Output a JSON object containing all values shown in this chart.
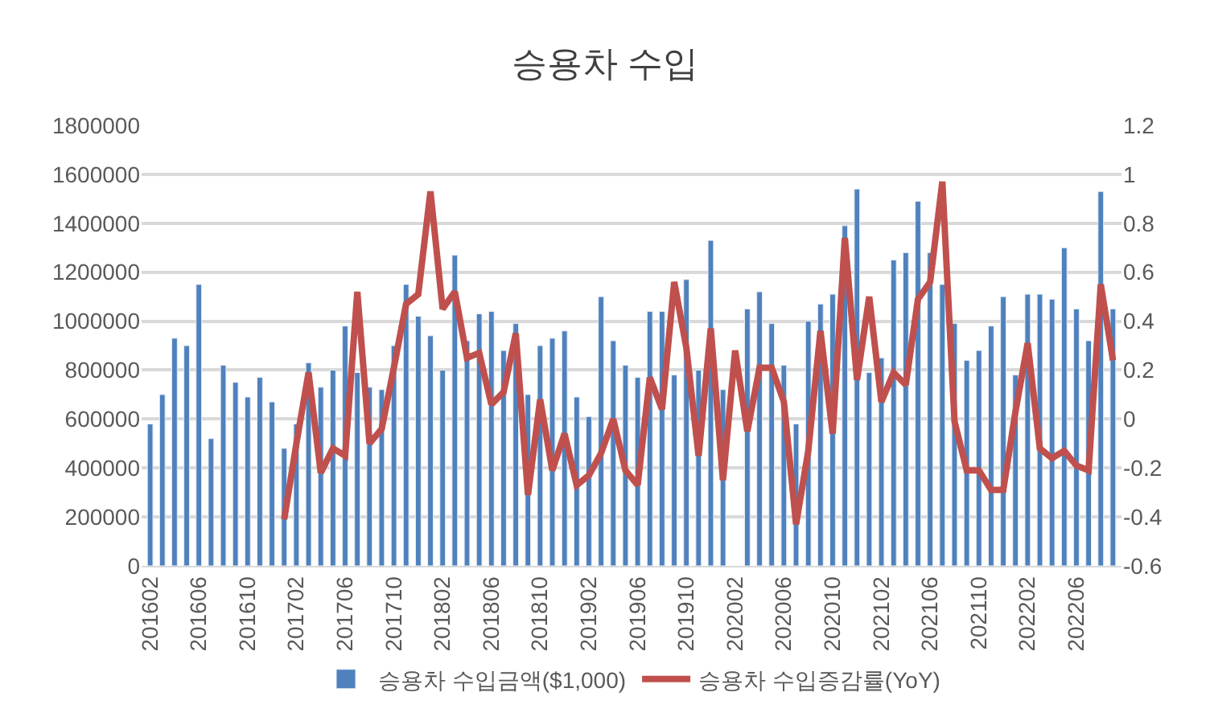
{
  "chart_data": {
    "type": "bar",
    "title": "승용차 수입",
    "categories": [
      "201602",
      null,
      null,
      null,
      "201606",
      null,
      null,
      null,
      "201610",
      null,
      null,
      null,
      "201702",
      null,
      null,
      null,
      "201706",
      null,
      null,
      null,
      "201710",
      null,
      null,
      null,
      "201802",
      null,
      null,
      null,
      "201806",
      null,
      null,
      null,
      "201810",
      null,
      null,
      null,
      "201902",
      null,
      null,
      null,
      "201906",
      null,
      null,
      null,
      "201910",
      null,
      null,
      null,
      "202002",
      null,
      null,
      null,
      "202006",
      null,
      null,
      null,
      "202010",
      null,
      null,
      null,
      "202102",
      null,
      null,
      null,
      "202106",
      null,
      null,
      null,
      "202110",
      null,
      null,
      null,
      "202202",
      null,
      null,
      null,
      "202206",
      null,
      null,
      null
    ],
    "series": [
      {
        "name": "승용차 수입금액($1,000)",
        "color": "#4f81bd",
        "values": [
          580000,
          700000,
          930000,
          900000,
          1150000,
          520000,
          820000,
          750000,
          690000,
          770000,
          670000,
          480000,
          580000,
          830000,
          730000,
          800000,
          980000,
          790000,
          730000,
          720000,
          900000,
          1150000,
          1020000,
          940000,
          800000,
          1270000,
          920000,
          1030000,
          1040000,
          880000,
          990000,
          700000,
          900000,
          930000,
          960000,
          690000,
          610000,
          1100000,
          920000,
          820000,
          770000,
          1040000,
          1040000,
          780000,
          1170000,
          800000,
          1330000,
          720000,
          null,
          1050000,
          1120000,
          990000,
          820000,
          580000,
          1000000,
          1070000,
          1110000,
          1390000,
          1540000,
          790000,
          850000,
          1250000,
          1280000,
          1490000,
          1280000,
          1150000,
          990000,
          840000,
          880000,
          980000,
          1100000,
          780000,
          1110000,
          1110000,
          1090000,
          1300000,
          1050000,
          920000,
          1530000,
          1050000
        ]
      },
      {
        "name": "승용차 수입증감률(YoY)",
        "type": "line",
        "axis": "y2",
        "color": "#c0504d",
        "values": [
          null,
          null,
          null,
          null,
          null,
          null,
          null,
          null,
          null,
          null,
          null,
          -0.41,
          -0.1,
          0.19,
          -0.22,
          -0.12,
          -0.15,
          0.52,
          -0.1,
          -0.04,
          0.21,
          0.47,
          0.51,
          0.93,
          0.45,
          0.52,
          0.25,
          0.27,
          0.06,
          0.11,
          0.35,
          -0.31,
          0.08,
          -0.21,
          -0.06,
          -0.27,
          -0.23,
          -0.14,
          0.0,
          -0.21,
          -0.27,
          0.17,
          0.04,
          0.56,
          0.29,
          -0.15,
          0.37,
          -0.25,
          0.28,
          -0.05,
          0.21,
          0.21,
          0.07,
          -0.43,
          -0.13,
          0.36,
          -0.06,
          0.74,
          0.16,
          0.5,
          0.07,
          0.19,
          0.14,
          0.49,
          0.56,
          0.97,
          -0.01,
          -0.21,
          -0.21,
          -0.29,
          -0.29,
          0.03,
          0.31,
          -0.12,
          -0.16,
          -0.13,
          -0.19,
          -0.21,
          0.55,
          0.24
        ]
      }
    ],
    "ylim": [
      0,
      1800000
    ],
    "yticks": [
      0,
      200000,
      400000,
      600000,
      800000,
      1000000,
      1200000,
      1400000,
      1600000,
      1800000
    ],
    "y2lim": [
      -0.6,
      1.2
    ],
    "y2ticks": [
      -0.6,
      -0.4,
      -0.2,
      0,
      0.2,
      0.4,
      0.6,
      0.8,
      1,
      1.2
    ],
    "grid": "y",
    "legend": "bottom"
  }
}
